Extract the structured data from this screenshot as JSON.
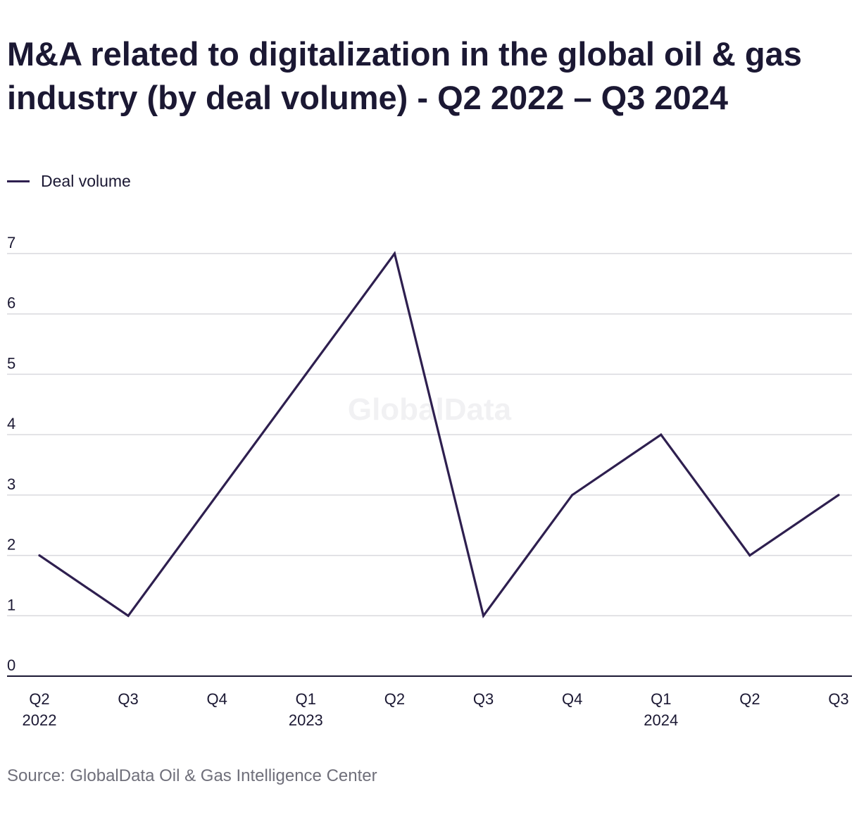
{
  "chart_data": {
    "type": "line",
    "title": "M&A related to digitalization in the global oil & gas industry (by deal volume) - Q2 2022 – Q3 2024",
    "categories": [
      {
        "quarter": "Q2",
        "year": "2022"
      },
      {
        "quarter": "Q3",
        "year": ""
      },
      {
        "quarter": "Q4",
        "year": ""
      },
      {
        "quarter": "Q1",
        "year": "2023"
      },
      {
        "quarter": "Q2",
        "year": ""
      },
      {
        "quarter": "Q3",
        "year": ""
      },
      {
        "quarter": "Q4",
        "year": ""
      },
      {
        "quarter": "Q1",
        "year": "2024"
      },
      {
        "quarter": "Q2",
        "year": ""
      },
      {
        "quarter": "Q3",
        "year": ""
      }
    ],
    "series": [
      {
        "name": "Deal volume",
        "color": "#2e1f4f",
        "values": [
          2,
          1,
          3,
          5,
          7,
          1,
          3,
          4,
          2,
          3
        ]
      }
    ],
    "ylim": [
      0,
      7
    ],
    "yticks": [
      0,
      1,
      2,
      3,
      4,
      5,
      6,
      7
    ],
    "grid": true,
    "legend_position": "top-left",
    "xlabel": "",
    "ylabel": ""
  },
  "watermark": "GlobalData",
  "source": "Source: GlobalData Oil & Gas Intelligence Center"
}
